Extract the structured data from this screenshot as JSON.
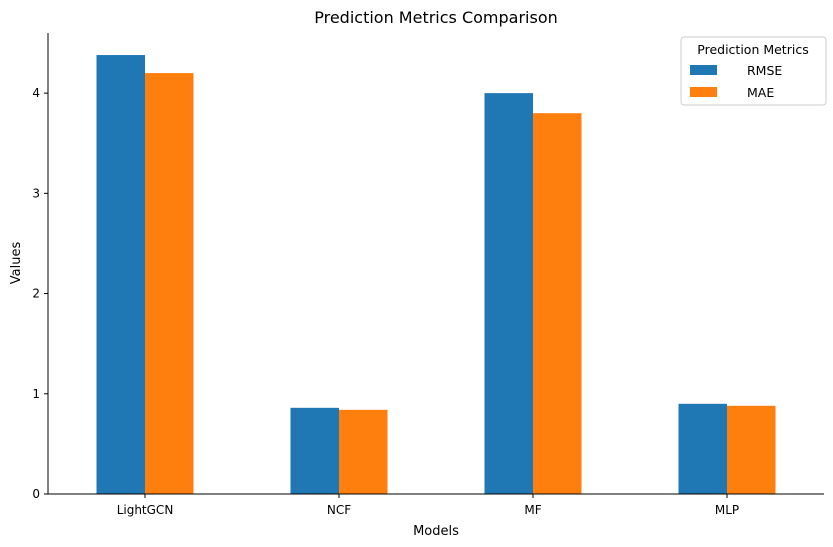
{
  "chart_data": {
    "type": "bar",
    "title": "Prediction Metrics Comparison",
    "xlabel": "Models",
    "ylabel": "Values",
    "categories": [
      "LightGCN",
      "NCF",
      "MF",
      "MLP"
    ],
    "series": [
      {
        "name": "RMSE",
        "color": "#1f77b4",
        "values": [
          4.38,
          0.86,
          4.0,
          0.9
        ]
      },
      {
        "name": "MAE",
        "color": "#ff7f0e",
        "values": [
          4.2,
          0.84,
          3.8,
          0.88
        ]
      }
    ],
    "ylim": [
      0,
      4.6
    ],
    "yticks": [
      "0",
      "1",
      "2",
      "3",
      "4"
    ],
    "legend": {
      "title": "Prediction Metrics",
      "position": "top-right"
    },
    "grid": false
  }
}
